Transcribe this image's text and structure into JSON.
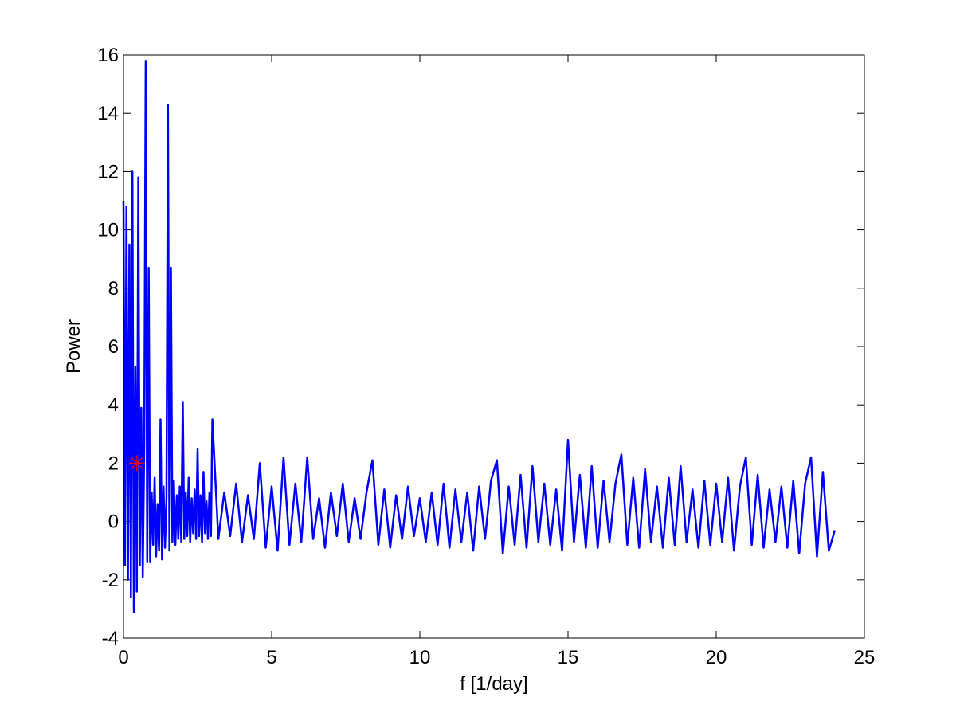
{
  "chart_data": {
    "type": "line",
    "xlabel": "f [1/day]",
    "ylabel": "Power",
    "xlim": [
      0,
      25
    ],
    "ylim": [
      -4,
      16
    ],
    "xticks": [
      0,
      5,
      10,
      15,
      20,
      25
    ],
    "yticks": [
      -4,
      -2,
      0,
      2,
      4,
      6,
      8,
      10,
      12,
      14,
      16
    ],
    "grid": false,
    "series": [
      {
        "color": "#0000ff",
        "x": [
          0,
          0.05,
          0.1,
          0.15,
          0.2,
          0.25,
          0.3,
          0.35,
          0.4,
          0.45,
          0.5,
          0.55,
          0.6,
          0.65,
          0.7,
          0.75,
          0.8,
          0.85,
          0.9,
          0.95,
          1.0,
          1.05,
          1.1,
          1.15,
          1.2,
          1.25,
          1.3,
          1.35,
          1.4,
          1.45,
          1.5,
          1.55,
          1.6,
          1.65,
          1.7,
          1.75,
          1.8,
          1.85,
          1.9,
          1.95,
          2.0,
          2.05,
          2.1,
          2.15,
          2.2,
          2.25,
          2.3,
          2.35,
          2.4,
          2.45,
          2.5,
          2.55,
          2.6,
          2.65,
          2.7,
          2.75,
          2.8,
          2.85,
          2.9,
          2.95,
          3.0,
          3.2,
          3.4,
          3.6,
          3.8,
          4.0,
          4.2,
          4.4,
          4.6,
          4.8,
          5.0,
          5.2,
          5.4,
          5.6,
          5.8,
          6.0,
          6.2,
          6.4,
          6.6,
          6.8,
          7.0,
          7.2,
          7.4,
          7.6,
          7.8,
          8.0,
          8.2,
          8.4,
          8.6,
          8.8,
          9.0,
          9.2,
          9.4,
          9.6,
          9.8,
          10.0,
          10.2,
          10.4,
          10.6,
          10.8,
          11.0,
          11.2,
          11.4,
          11.6,
          11.8,
          12.0,
          12.2,
          12.4,
          12.6,
          12.8,
          13.0,
          13.2,
          13.4,
          13.6,
          13.8,
          14.0,
          14.2,
          14.4,
          14.6,
          14.8,
          15.0,
          15.2,
          15.4,
          15.6,
          15.8,
          16.0,
          16.2,
          16.4,
          16.6,
          16.8,
          17.0,
          17.2,
          17.4,
          17.6,
          17.8,
          18.0,
          18.2,
          18.4,
          18.6,
          18.8,
          19.0,
          19.2,
          19.4,
          19.6,
          19.8,
          20.0,
          20.2,
          20.4,
          20.6,
          20.8,
          21.0,
          21.2,
          21.4,
          21.6,
          21.8,
          22.0,
          22.2,
          22.4,
          22.6,
          22.8,
          23.0,
          23.2,
          23.4,
          23.6,
          23.8,
          24.0
        ],
        "values": [
          11,
          -1.5,
          10.8,
          -2.0,
          9.5,
          -2.6,
          12,
          -3.1,
          5.3,
          -2.4,
          11.8,
          -1.5,
          3.9,
          -1.9,
          2.6,
          15.8,
          -1.4,
          8.7,
          -1.4,
          1.0,
          -0.8,
          1.5,
          -1.2,
          0.6,
          -1.0,
          3.5,
          -1.3,
          1.2,
          -0.9,
          0.8,
          14.3,
          -1.0,
          8.7,
          -0.7,
          1.4,
          -0.8,
          0.9,
          -0.6,
          1.2,
          -0.7,
          4.1,
          -0.6,
          1.0,
          -0.5,
          1.5,
          -0.7,
          0.8,
          -0.4,
          1.1,
          -0.6,
          2.5,
          -0.5,
          0.9,
          -0.7,
          1.7,
          -0.4,
          0.7,
          -0.6,
          1.0,
          -0.5,
          3.5,
          -0.6,
          1.0,
          -0.5,
          1.3,
          -0.7,
          0.9,
          -0.6,
          2.0,
          -0.9,
          1.2,
          -1.0,
          2.2,
          -0.8,
          1.3,
          -0.7,
          2.2,
          -0.6,
          0.8,
          -0.9,
          1.0,
          -0.5,
          1.3,
          -0.7,
          0.8,
          -0.6,
          1.0,
          2.1,
          -0.8,
          1.1,
          -0.9,
          0.9,
          -0.6,
          1.2,
          -0.5,
          0.8,
          -0.7,
          1.0,
          -0.8,
          1.3,
          -0.9,
          1.1,
          -0.7,
          1.0,
          -1.0,
          1.2,
          -0.6,
          1.4,
          2.1,
          -1.1,
          1.2,
          -0.8,
          1.6,
          -0.9,
          1.9,
          -0.7,
          1.3,
          -0.8,
          1.1,
          -1.0,
          2.8,
          -0.7,
          1.6,
          -0.9,
          1.9,
          -0.9,
          1.4,
          -0.7,
          1.3,
          2.3,
          -0.8,
          1.5,
          -0.9,
          1.8,
          -0.7,
          1.2,
          -0.9,
          1.5,
          -0.8,
          1.9,
          -0.7,
          1.1,
          -0.9,
          1.4,
          -0.8,
          1.3,
          -0.7,
          1.5,
          -1.0,
          1.2,
          2.2,
          -0.8,
          1.6,
          -0.9,
          1.1,
          -0.7,
          1.2,
          -0.9,
          1.4,
          -1.1,
          1.3,
          2.2,
          -1.2,
          1.7,
          -1.0,
          -0.3
        ]
      }
    ],
    "marker": {
      "x": 0.45,
      "y": 2,
      "color": "#ff0000"
    }
  }
}
